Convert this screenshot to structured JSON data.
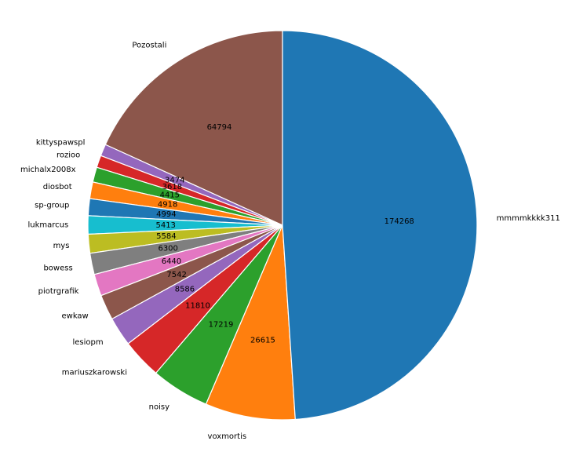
{
  "chart_data": {
    "type": "pie",
    "title": "",
    "startangle_deg": 90,
    "direction": "counterclockwise",
    "slices": [
      {
        "label": "Pozostali",
        "value": 64794,
        "value_label": "64794",
        "color": "#8c564b"
      },
      {
        "label": "kittyspawspl",
        "value": 3474,
        "value_label": "3474",
        "color": "#9467bd"
      },
      {
        "label": "rozioo",
        "value": 3618,
        "value_label": "3618",
        "color": "#d62728"
      },
      {
        "label": "michalx2008x",
        "value": 4415,
        "value_label": "4415",
        "color": "#2ca02c"
      },
      {
        "label": "diosbot",
        "value": 4918,
        "value_label": "4918",
        "color": "#ff7f0e"
      },
      {
        "label": "sp-group",
        "value": 4994,
        "value_label": "4994",
        "color": "#1f77b4"
      },
      {
        "label": "lukmarcus",
        "value": 5413,
        "value_label": "5413",
        "color": "#17becf"
      },
      {
        "label": "mys",
        "value": 5584,
        "value_label": "5584",
        "color": "#bcbd22"
      },
      {
        "label": "bowess",
        "value": 6300,
        "value_label": "6300",
        "color": "#7f7f7f"
      },
      {
        "label": "piotrgrafik",
        "value": 6440,
        "value_label": "6440",
        "color": "#e377c2"
      },
      {
        "label": "ewkaw",
        "value": 7542,
        "value_label": "7542",
        "color": "#8c564b"
      },
      {
        "label": "lesiopm",
        "value": 8586,
        "value_label": "8586",
        "color": "#9467bd"
      },
      {
        "label": "mariuszkarowski",
        "value": 11810,
        "value_label": "11810",
        "color": "#d62728"
      },
      {
        "label": "noisy",
        "value": 17219,
        "value_label": "17219",
        "color": "#2ca02c"
      },
      {
        "label": "voxmortis",
        "value": 26615,
        "value_label": "26615",
        "color": "#ff7f0e"
      },
      {
        "label": "mmmmkkkk311",
        "value": 174268,
        "value_label": "174268",
        "color": "#1f77b4"
      }
    ]
  }
}
